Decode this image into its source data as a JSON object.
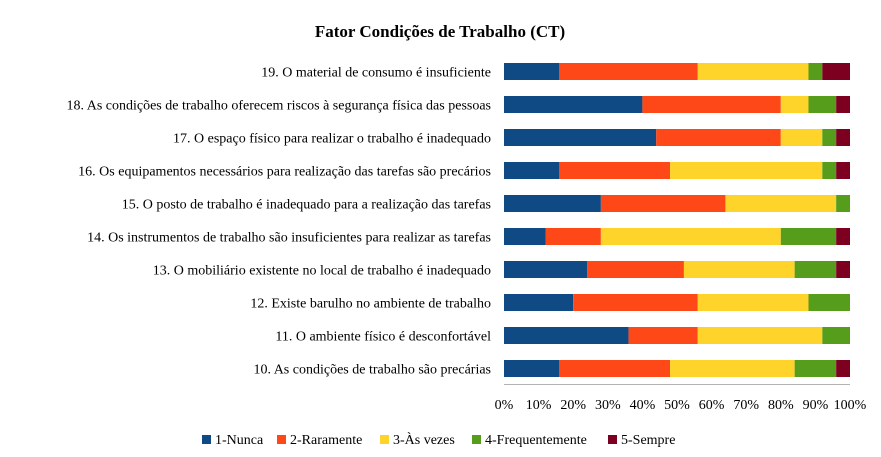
{
  "chart_data": {
    "type": "bar",
    "orientation": "horizontal",
    "stacked": "percent",
    "title": "Fator Condições de Trabalho (CT)",
    "xlabel": "",
    "ylabel": "",
    "xlim": [
      0,
      100
    ],
    "x_ticks": [
      "0%",
      "10%",
      "20%",
      "30%",
      "40%",
      "50%",
      "60%",
      "70%",
      "80%",
      "90%",
      "100%"
    ],
    "grid": false,
    "legend_position": "bottom",
    "categories": [
      "19. O material de consumo é insuficiente",
      "18. As condições de trabalho oferecem riscos à segurança física das pessoas",
      "17. O espaço físico para realizar o trabalho é inadequado",
      "16. Os equipamentos necessários para realização das tarefas são precários",
      "15. O posto de trabalho é inadequado para a realização das tarefas",
      "14. Os instrumentos de trabalho são insuficientes para realizar as tarefas",
      "13. O mobiliário existente no local de trabalho é inadequado",
      "12. Existe barulho no ambiente de trabalho",
      "11. O ambiente físico é desconfortável",
      "10. As condições de trabalho são precárias"
    ],
    "series": [
      {
        "name": "1-Nunca",
        "color": "#0f4a85",
        "values": [
          16,
          40,
          44,
          16,
          28,
          12,
          24,
          20,
          36,
          16
        ]
      },
      {
        "name": "2-Raramente",
        "color": "#ff4818",
        "values": [
          40,
          40,
          36,
          32,
          36,
          16,
          28,
          36,
          20,
          32
        ]
      },
      {
        "name": "3-Às vezes",
        "color": "#ffd42a",
        "values": [
          32,
          8,
          12,
          44,
          32,
          52,
          32,
          32,
          36,
          36
        ]
      },
      {
        "name": "4-Frequentemente",
        "color": "#579d1c",
        "values": [
          4,
          8,
          4,
          4,
          4,
          16,
          12,
          12,
          8,
          12
        ]
      },
      {
        "name": "5-Sempre",
        "color": "#7e0021",
        "values": [
          8,
          4,
          4,
          4,
          0,
          4,
          4,
          0,
          0,
          4
        ]
      }
    ]
  }
}
